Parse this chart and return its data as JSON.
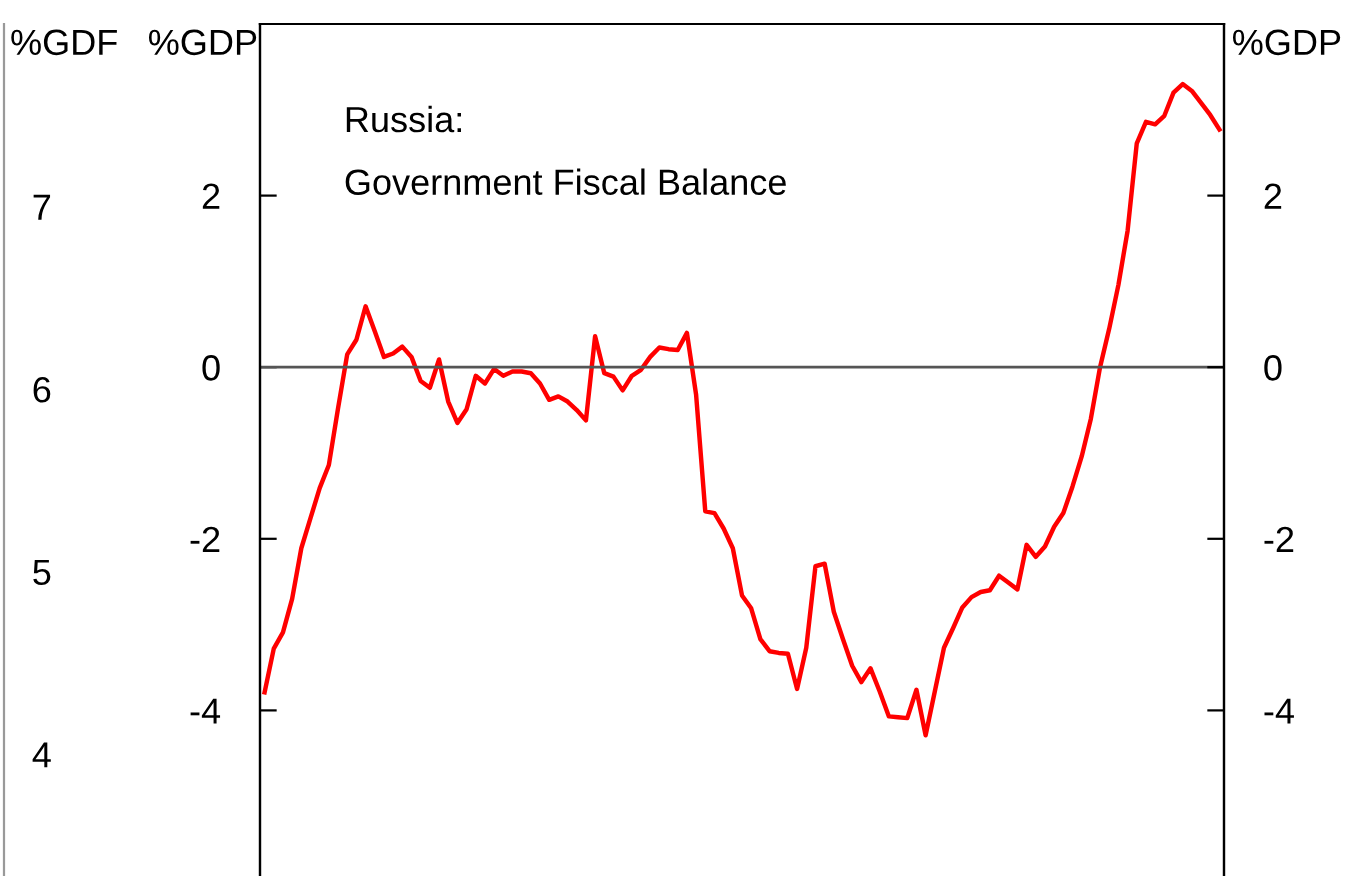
{
  "chart_data": {
    "type": "line",
    "title": "Russia:",
    "subtitle": "Government Fiscal Balance",
    "ylabel": "%GDP",
    "y2label": "%GDP",
    "y3label": "%GDF",
    "categories": [
      null,
      null,
      null,
      null,
      null,
      null,
      null,
      null,
      null,
      null,
      null,
      null,
      null,
      null,
      null,
      null,
      null,
      null,
      null,
      null,
      null,
      null,
      null,
      null,
      null,
      null,
      null,
      null,
      null,
      null,
      null,
      null,
      null,
      null,
      null,
      null,
      null,
      null,
      null,
      null,
      null,
      null,
      null,
      null,
      null,
      null,
      null,
      null,
      null,
      null,
      null,
      null,
      null,
      null,
      null,
      null,
      null,
      null,
      null,
      null,
      null,
      null,
      null,
      null,
      null,
      null,
      null,
      null,
      null,
      null,
      null,
      null,
      null,
      null,
      null,
      null,
      null,
      null,
      null,
      null,
      null,
      null,
      null,
      null,
      null,
      null,
      null,
      null,
      null,
      null,
      null,
      null,
      null,
      null,
      null,
      null,
      null,
      null,
      null,
      null,
      null,
      null,
      null,
      null,
      null
    ],
    "series": [
      {
        "color": "#ff0000",
        "values": [
          -3.79,
          -3.28,
          -3.09,
          -2.7,
          -2.11,
          -1.76,
          -1.41,
          -1.14,
          -0.48,
          0.15,
          0.32,
          0.71,
          0.42,
          0.12,
          0.16,
          0.24,
          0.12,
          -0.16,
          -0.24,
          0.09,
          -0.4,
          -0.65,
          -0.49,
          -0.1,
          -0.19,
          -0.02,
          -0.1,
          -0.05,
          -0.05,
          -0.07,
          -0.19,
          -0.38,
          -0.34,
          -0.4,
          -0.5,
          -0.62,
          0.36,
          -0.07,
          -0.11,
          -0.27,
          -0.1,
          -0.03,
          0.12,
          0.23,
          0.21,
          0.2,
          0.4,
          -0.32,
          -1.68,
          -1.7,
          -1.88,
          -2.11,
          -2.66,
          -2.81,
          -3.17,
          -3.31,
          -3.33,
          -3.34,
          -3.75,
          -3.27,
          -2.32,
          -2.29,
          -2.85,
          -3.17,
          -3.48,
          -3.67,
          -3.51,
          -3.78,
          -4.07,
          -4.08,
          -4.09,
          -3.76,
          -4.29,
          -3.78,
          -3.27,
          -3.04,
          -2.8,
          -2.68,
          -2.62,
          -2.6,
          -2.43,
          -2.51,
          -2.59,
          -2.07,
          -2.21,
          -2.09,
          -1.86,
          -1.7,
          -1.39,
          -1.04,
          -0.6,
          0.0,
          0.45,
          0.96,
          1.59,
          2.61,
          2.86,
          2.83,
          2.93,
          3.2,
          3.3,
          3.22,
          3.08,
          2.94,
          2.77
        ]
      }
    ],
    "ylim": [
      -6,
      4
    ],
    "yticks": [
      -4,
      -2,
      0,
      2
    ],
    "y2lim": [
      -6,
      4
    ],
    "y2ticks": [
      -4,
      -2,
      0,
      2
    ],
    "y3lim": [
      3.3,
      8
    ],
    "y3ticks": [
      4,
      5,
      6,
      7
    ],
    "ref_lines": [
      {
        "axis": "y",
        "value": 0,
        "color": "#555555"
      }
    ],
    "grid": false,
    "legend": false
  }
}
